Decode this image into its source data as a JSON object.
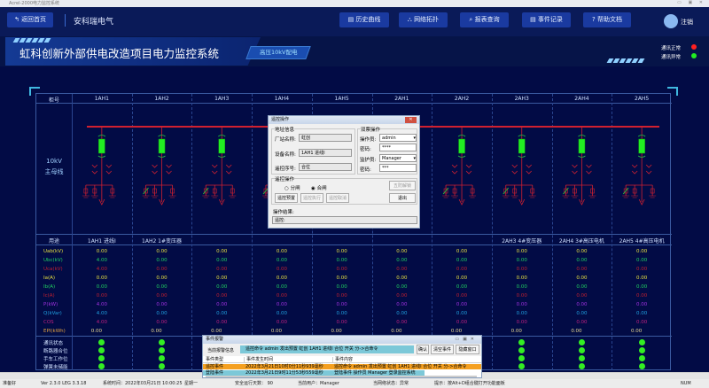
{
  "window": {
    "title": "Acrel-2000电力监控系统"
  },
  "nav": {
    "back": "返回首页",
    "company": "安科瑞电气",
    "buttons": [
      "历史曲线",
      "网络拓扑",
      "报表查询",
      "事件记录",
      "帮助文档"
    ],
    "logout": "注销"
  },
  "banner": {
    "title": "虹科创新外部供电改造项目电力监控系统",
    "subtitle": "高压10kV配电",
    "legend": [
      {
        "label": "通讯正常",
        "color": "#ff2020"
      },
      {
        "label": "通讯异常",
        "color": "#22ee22"
      }
    ]
  },
  "table": {
    "corner_top": "柜号",
    "corner_mid": "用途",
    "cabinets": [
      "1AH1",
      "1AH2",
      "1AH3",
      "1AH4",
      "1AH5",
      "2AH1",
      "2AH2",
      "2AH3",
      "2AH4",
      "2AH5"
    ],
    "uses": [
      "1AH1 进线I",
      "1AH2 1#变压器",
      "",
      "",
      "",
      "",
      "",
      "2AH3 4#变压器",
      "2AH4 3#高压电机",
      "2AH5 4#高压电机"
    ],
    "bus_label": [
      "10kV",
      "主母线"
    ],
    "rows": [
      {
        "label": "Uab(kV)",
        "color": "#e8e040",
        "values": [
          "0.00",
          "0.00",
          "0.00",
          "0.00",
          "0.00",
          "0.00",
          "0.00",
          "0.00",
          "0.00",
          "0.00"
        ]
      },
      {
        "label": "Ubc(kV)",
        "color": "#20d060",
        "values": [
          "4.00",
          "0.00",
          "0.00",
          "0.00",
          "0.00",
          "0.00",
          "0.00",
          "0.00",
          "0.00",
          "0.00"
        ]
      },
      {
        "label": "Uca(kV)",
        "color": "#c02030",
        "values": [
          "4.00",
          "0.00",
          "0.00",
          "0.00",
          "0.00",
          "0.00",
          "0.00",
          "0.00",
          "0.00",
          "0.00"
        ]
      },
      {
        "label": "Ia(A)",
        "color": "#e8e040",
        "values": [
          "0.00",
          "0.00",
          "0.00",
          "0.00",
          "0.00",
          "0.00",
          "0.00",
          "0.00",
          "0.00",
          "0.00"
        ]
      },
      {
        "label": "Ib(A)",
        "color": "#20d060",
        "values": [
          "0.00",
          "0.00",
          "0.00",
          "0.00",
          "0.00",
          "0.00",
          "0.00",
          "0.00",
          "0.00",
          "0.00"
        ]
      },
      {
        "label": "Ic(A)",
        "color": "#c02030",
        "values": [
          "0.00",
          "0.00",
          "0.00",
          "0.00",
          "0.00",
          "0.00",
          "0.00",
          "0.00",
          "0.00",
          "0.00"
        ]
      },
      {
        "label": "P(kW)",
        "color": "#a030e0",
        "values": [
          "4.00",
          "0.00",
          "0.00",
          "0.00",
          "0.00",
          "0.00",
          "0.00",
          "0.00",
          "0.00",
          "0.00"
        ]
      },
      {
        "label": "Q(kVar)",
        "color": "#20a0e0",
        "values": [
          "4.00",
          "0.00",
          "0.00",
          "0.00",
          "0.00",
          "0.00",
          "0.00",
          "0.00",
          "0.00",
          "0.00"
        ]
      },
      {
        "label": "COS",
        "color": "#c02080",
        "values": [
          "4.00",
          "0.00",
          "0.00",
          "0.00",
          "0.00",
          "0.00",
          "0.00",
          "0.00",
          "0.00",
          "0.00"
        ]
      },
      {
        "label": "EPI(kWh)",
        "color": "#e0a040",
        "values": [
          "0.00",
          "0.00",
          "0.00",
          "0.00",
          "0.00",
          "0.00",
          "0.00",
          "0.00",
          "0.00",
          "0.00"
        ]
      }
    ],
    "status_rows": [
      "通讯状态",
      "断路器合位",
      "手车工作位",
      "弹簧未储能"
    ],
    "status_color": "#33ee22"
  },
  "remote_dialog": {
    "title": "遥控操作",
    "addr_group": "地址信息",
    "station_label": "厂站名称:",
    "station": "虹创",
    "device_label": "设备名称:",
    "device": "1AH1 进线I",
    "index_label": "遥控序号:",
    "index": "合位",
    "dual_group": "双票操作",
    "operator_label": "操作员:",
    "operator": "admin",
    "pwd_label": "密码:",
    "pwd1": "****",
    "guardian_label": "监护员:",
    "guardian": "Manager",
    "pwd2": "***",
    "op_group": "遥控操作",
    "radio_open": "分闸",
    "radio_close": "合闸",
    "preset": "遥控预置",
    "execute": "遥控执行",
    "cancel": "遥控取消",
    "unlock": "五防解锁",
    "exit": "退出",
    "result_label": "操作结果:",
    "result": "遥控:"
  },
  "event_dialog": {
    "title": "事件报警",
    "current_label": "当前报警信息",
    "current": "遥控命令 admin 发出预置 虹创 1AH1 进线I 合位 开关 分->合命令",
    "confirm": "确认",
    "clear": "清空事件",
    "hide": "隐藏窗口",
    "columns": [
      "事件类型",
      "事件发生时间",
      "事件内容"
    ],
    "rows": [
      {
        "type": "遥控事件",
        "time": "2022年3月21日10时0分11秒939毫秒",
        "content": "遥控命令 admin 发出预置 虹创 1AH1 进线I 合位 开关 分->合命令",
        "color": "#f5a020"
      },
      {
        "type": "登陆事件",
        "time": "2022年3月21日9时11分53秒559毫秒",
        "content": "登陆事件 操作员 Manager 登录监控系统",
        "color": "#7cc8d8"
      }
    ]
  },
  "statusbar": {
    "ready": "准备好",
    "version": "Ver 2.3.0 LEG 3.3.18",
    "time": "系统时间：2022年03月21日  10:00:25",
    "weekday": "星期一",
    "days": "安全运行天数：  90",
    "user": "当前用户：Manager",
    "net": "当网络状态：异常",
    "hint": "提示：按Alt+D组合键打开功能面板",
    "num": "NUM"
  }
}
